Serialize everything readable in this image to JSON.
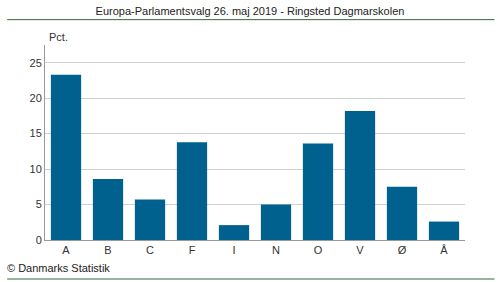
{
  "chart_data": {
    "type": "bar",
    "title": "Europa-Parlamentsvalg 26. maj 2019 - Ringsted Dagmarskolen",
    "y_label": "Pct.",
    "annotations": [
      "© Danmarks Statistik"
    ],
    "categories": [
      "A",
      "B",
      "C",
      "F",
      "I",
      "N",
      "O",
      "V",
      "Ø",
      "Å"
    ],
    "values": [
      23.3,
      8.6,
      5.7,
      13.8,
      2.1,
      5.0,
      13.6,
      18.2,
      7.5,
      2.6
    ],
    "color": "#00618f",
    "ylim": [
      0,
      27.5
    ],
    "yticks": [
      0,
      5,
      10,
      15,
      20,
      25
    ],
    "grid": true
  }
}
